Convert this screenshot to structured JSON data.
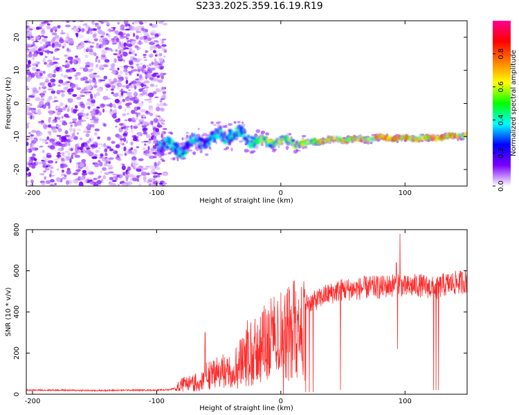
{
  "title": "S233.2025.359.16.19.R19",
  "chart_data": [
    {
      "type": "heatmap",
      "title": "S233.2025.359.16.19.R19",
      "xlabel": "Height of straight line (km)",
      "ylabel": "Frequency (Hz)",
      "xlim": [
        -205,
        150
      ],
      "ylim": [
        -25,
        25
      ],
      "xticks": [
        -200,
        -100,
        0,
        100
      ],
      "yticks": [
        -20,
        -10,
        0,
        10,
        20
      ],
      "grid": false,
      "description_regions": [
        {
          "name": "noise",
          "x_range": [
            -205,
            -93
          ],
          "y_range": [
            -25,
            25
          ],
          "amplitude_range": [
            0.0,
            0.2
          ]
        },
        {
          "name": "signal-track",
          "x_range": [
            -98,
            150
          ],
          "amplitude_range": [
            0.1,
            1.0
          ]
        }
      ],
      "signal_track": {
        "x": [
          -98,
          -90,
          -80,
          -70,
          -60,
          -50,
          -40,
          -30,
          -20,
          -10,
          0,
          10,
          20,
          40,
          60,
          80,
          100,
          120,
          150
        ],
        "frequency": [
          -12,
          -13,
          -14,
          -12,
          -11,
          -10,
          -9,
          -10,
          -11,
          -12,
          -11,
          -12,
          -12,
          -11,
          -11,
          -10.5,
          -10.5,
          -10.5,
          -9.5
        ]
      },
      "colorbar": {
        "label": "Normalized spectral amplitude",
        "range": [
          0.0,
          1.0
        ],
        "ticks": [
          "0.0",
          "0.2",
          "0.4",
          "0.6",
          "0.8"
        ],
        "colors": [
          "#ffffff",
          "#7b00ff",
          "#0000ff",
          "#00ffff",
          "#00ff00",
          "#ffff00",
          "#ff8000",
          "#ff0000",
          "#ff0090"
        ]
      }
    },
    {
      "type": "line",
      "title": "",
      "xlabel": "Height of straight line (km)",
      "ylabel": "SNR (10 * v/v)",
      "xlim": [
        -205,
        150
      ],
      "ylim": [
        0,
        800
      ],
      "xticks": [
        -200,
        -100,
        0,
        100
      ],
      "yticks": [
        0,
        200,
        400,
        600,
        800
      ],
      "grid": false,
      "series": [
        {
          "name": "SNR",
          "color": "#ff2a2a",
          "x": [
            -205,
            -180,
            -150,
            -120,
            -100,
            -90,
            -85,
            -80,
            -75,
            -70,
            -65,
            -60,
            -55,
            -50,
            -45,
            -40,
            -35,
            -30,
            -25,
            -20,
            -15,
            -10,
            -5,
            0,
            5,
            10,
            15,
            20,
            25,
            30,
            35,
            40,
            45,
            50,
            60,
            70,
            80,
            90,
            95,
            100,
            110,
            120,
            125,
            130,
            140,
            150
          ],
          "values": [
            20,
            20,
            18,
            20,
            20,
            22,
            30,
            60,
            60,
            70,
            80,
            110,
            120,
            130,
            140,
            170,
            180,
            210,
            240,
            280,
            300,
            330,
            340,
            350,
            360,
            400,
            420,
            440,
            450,
            460,
            480,
            490,
            500,
            510,
            510,
            520,
            520,
            530,
            540,
            520,
            530,
            520,
            510,
            530,
            540,
            550
          ]
        }
      ],
      "spikes": [
        {
          "x": -61,
          "value": 300
        },
        {
          "x": -27,
          "value": 360
        },
        {
          "x": -15,
          "value": 400
        },
        {
          "x": 3,
          "value": 430
        },
        {
          "x": 96,
          "value": 780
        },
        {
          "x": 93,
          "value": 640
        }
      ],
      "dropouts": [
        {
          "x": 2,
          "value": 0
        },
        {
          "x": 20,
          "value": 10
        },
        {
          "x": 23,
          "value": 10
        },
        {
          "x": 26,
          "value": 10
        },
        {
          "x": 48,
          "value": 20
        },
        {
          "x": 94,
          "value": 220
        },
        {
          "x": 123,
          "value": 20
        },
        {
          "x": 125,
          "value": 20
        },
        {
          "x": 127,
          "value": 20
        }
      ]
    }
  ]
}
